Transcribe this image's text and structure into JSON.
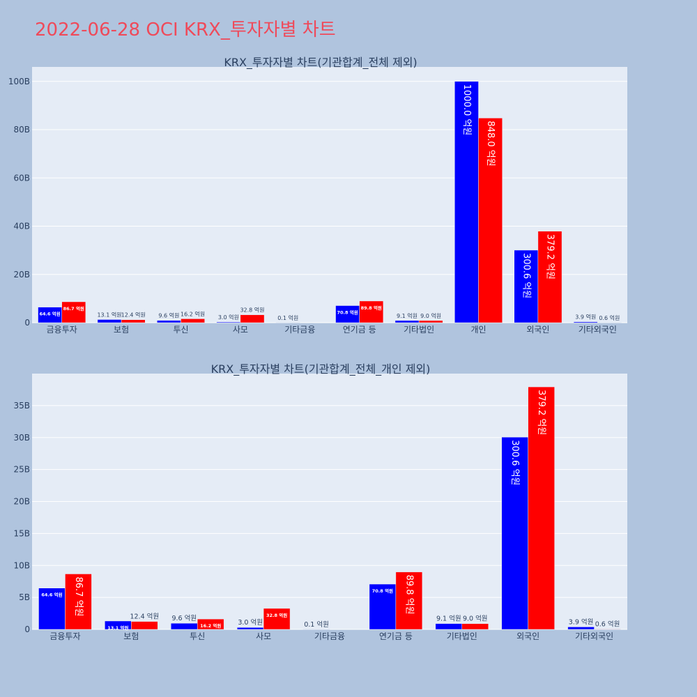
{
  "page": {
    "title": "2022-06-28 OCI KRX_투자자별 차트"
  },
  "colors": {
    "background": "#b0c4de",
    "plot_bg": "#e5ecf6",
    "title": "#ef4a5a",
    "series_a": "#0000ff",
    "series_b": "#ff0000"
  },
  "chart_data": [
    {
      "type": "bar",
      "title": "KRX_투자자별 차트(기관합계_전체 제외)",
      "categories": [
        "금융투자",
        "보험",
        "투신",
        "사모",
        "기타금융",
        "연기금 등",
        "기타법인",
        "개인",
        "외국인",
        "기타외국인"
      ],
      "yticks": [
        0,
        20,
        40,
        60,
        80,
        100
      ],
      "ytick_labels": [
        "0",
        "20B",
        "40B",
        "60B",
        "80B",
        "100B"
      ],
      "ylim": [
        0,
        106
      ],
      "grid": true,
      "series": [
        {
          "color": "#0000ff",
          "values": [
            6.46,
            1.31,
            0.96,
            0.3,
            0.01,
            7.08,
            0.91,
            100.0,
            30.06,
            0.39
          ],
          "labels": [
            "64.6 억원",
            "13.1 억원",
            "9.6 억원",
            "3.0 억원",
            "0.1 억원",
            "70.8 억원",
            "9.1 억원",
            "1000.0 억원",
            "300.6 억원",
            "3.9 억원"
          ]
        },
        {
          "color": "#ff0000",
          "values": [
            8.67,
            1.24,
            1.62,
            3.28,
            null,
            8.98,
            0.9,
            84.8,
            37.92,
            0.06
          ],
          "labels": [
            "86.7 억원",
            "12.4 억원",
            "16.2 억원",
            "32.8 억원",
            "",
            "89.8 억원",
            "9.0 억원",
            "848.0 억원",
            "379.2 억원",
            "0.6 억원"
          ]
        }
      ]
    },
    {
      "type": "bar",
      "title": "KRX_투자자별 차트(기관합계_전체_개인 제외)",
      "categories": [
        "금융투자",
        "보험",
        "투신",
        "사모",
        "기타금융",
        "연기금 등",
        "기타법인",
        "외국인",
        "기타외국인"
      ],
      "yticks": [
        0,
        5,
        10,
        15,
        20,
        25,
        30,
        35
      ],
      "ytick_labels": [
        "0",
        "5B",
        "10B",
        "15B",
        "20B",
        "25B",
        "30B",
        "35B"
      ],
      "ylim": [
        0,
        40
      ],
      "grid": true,
      "series": [
        {
          "color": "#0000ff",
          "values": [
            6.46,
            1.31,
            0.96,
            0.3,
            0.01,
            7.08,
            0.91,
            30.06,
            0.39
          ],
          "labels": [
            "64.6 억원",
            "13.1 억원",
            "9.6 억원",
            "3.0 억원",
            "0.1 억원",
            "70.8 억원",
            "9.1 억원",
            "300.6 억원",
            "3.9 억원"
          ]
        },
        {
          "color": "#ff0000",
          "values": [
            8.67,
            1.24,
            1.62,
            3.28,
            null,
            8.98,
            0.9,
            37.92,
            0.06
          ],
          "labels": [
            "86.7 억원",
            "12.4 억원",
            "16.2 억원",
            "32.8 억원",
            "",
            "89.8 억원",
            "9.0 억원",
            "379.2 억원",
            "0.6 억원"
          ]
        }
      ]
    }
  ]
}
